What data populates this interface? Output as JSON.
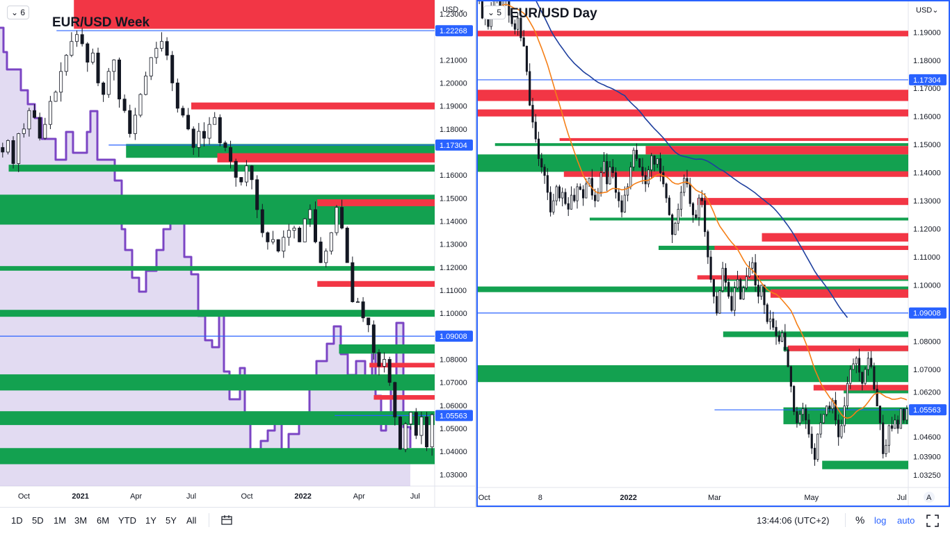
{
  "colors": {
    "bear_zone": "#f23645",
    "bull_zone": "#13a150",
    "level_line": "#2962ff",
    "candle": "#131722",
    "volume_line": "#7b45c4",
    "volume_fill": "#cbbde8",
    "ma_fast": "#f57f17",
    "ma_slow": "#1e3f9e",
    "price_tag": "#2962ff",
    "pane_border": "#2962ff"
  },
  "left_chart": {
    "pane_tag": "6",
    "currency": "USD",
    "ticks": [
      "1.23000",
      "1.22268",
      "1.21000",
      "1.20000",
      "1.19000",
      "1.18000",
      "1.17304",
      "1.16000",
      "1.15000",
      "1.14000",
      "1.13000",
      "1.12000",
      "1.11000",
      "1.10000",
      "1.09008",
      "1.08000",
      "1.07000",
      "1.06000",
      "1.05563",
      "1.05000",
      "1.04000",
      "1.03000"
    ],
    "time_labels": [
      "Oct",
      "2021",
      "Apr",
      "Jul",
      "Oct",
      "2022",
      "Apr",
      "Jul"
    ]
  },
  "right_chart": {
    "pane_tag": "5",
    "currency": "USD",
    "ticks": [
      "1.19000",
      "1.18000",
      "1.17304",
      "1.17000",
      "1.16000",
      "1.15000",
      "1.14000",
      "1.13000",
      "1.12000",
      "1.11000",
      "1.09008",
      "1.10000",
      "1.08000",
      "1.07000",
      "1.06200",
      "1.05563",
      "1.04600",
      "1.03900",
      "1.03250"
    ],
    "time_labels": [
      "Oct",
      "8",
      "2022",
      "Mar",
      "May",
      "Jul"
    ],
    "auto_badge": "A"
  },
  "chart_data": [
    {
      "type": "candlestick",
      "title": "EUR/USD Week",
      "ylim": [
        1.025,
        1.236
      ],
      "price_levels": [
        1.22268,
        1.17304,
        1.09008,
        1.05563
      ],
      "current_price": 1.05563,
      "resistance_zones": [
        [
          1.2235,
          1.236
        ],
        [
          1.1885,
          1.1915
        ],
        [
          1.1655,
          1.1695
        ],
        [
          1.1465,
          1.1495
        ],
        [
          1.1115,
          1.114
        ],
        [
          1.0765,
          1.0785
        ],
        [
          1.0625,
          1.0645
        ]
      ],
      "support_zones": [
        [
          1.1675,
          1.1735
        ],
        [
          1.1615,
          1.1645
        ],
        [
          1.1385,
          1.1515
        ],
        [
          1.1185,
          1.1205
        ],
        [
          1.0985,
          1.1015
        ],
        [
          1.0825,
          1.0865
        ],
        [
          1.0665,
          1.0735
        ],
        [
          1.0515,
          1.0575
        ],
        [
          1.0345,
          1.0415
        ]
      ],
      "closes": [
        1.17,
        1.175,
        1.165,
        1.178,
        1.18,
        1.188,
        1.185,
        1.176,
        1.182,
        1.192,
        1.196,
        1.205,
        1.212,
        1.218,
        1.221,
        1.217,
        1.209,
        1.213,
        1.2,
        1.195,
        1.205,
        1.21,
        1.193,
        1.188,
        1.178,
        1.186,
        1.195,
        1.203,
        1.211,
        1.215,
        1.218,
        1.212,
        1.2,
        1.189,
        1.186,
        1.18,
        1.172,
        1.179,
        1.176,
        1.182,
        1.185,
        1.174,
        1.172,
        1.166,
        1.159,
        1.157,
        1.164,
        1.158,
        1.145,
        1.135,
        1.131,
        1.132,
        1.127,
        1.133,
        1.136,
        1.137,
        1.131,
        1.141,
        1.145,
        1.131,
        1.122,
        1.127,
        1.135,
        1.146,
        1.137,
        1.122,
        1.105,
        1.105,
        1.098,
        1.095,
        1.083,
        1.077,
        1.08,
        1.07,
        1.055,
        1.041,
        1.052,
        1.057,
        1.047,
        1.055,
        1.042,
        1.056
      ]
    },
    {
      "type": "candlestick",
      "title": "EUR/USD Day",
      "ylim": [
        1.028,
        1.196
      ],
      "price_levels": [
        1.17304,
        1.09008,
        1.05563
      ],
      "current_price": 1.05563,
      "resistance_zones": [
        [
          1.1885,
          1.1905
        ],
        [
          1.1655,
          1.1695
        ],
        [
          1.16,
          1.1625
        ],
        [
          1.1513,
          1.1523
        ],
        [
          1.1465,
          1.1495
        ],
        [
          1.1385,
          1.1405
        ],
        [
          1.1285,
          1.131
        ],
        [
          1.1155,
          1.1185
        ],
        [
          1.1125,
          1.114
        ],
        [
          1.102,
          1.1035
        ],
        [
          1.0955,
          1.0985
        ],
        [
          1.0765,
          1.0785
        ],
        [
          1.0625,
          1.0645
        ]
      ],
      "support_zones": [
        [
          1.1403,
          1.1465
        ],
        [
          1.1495,
          1.1505
        ],
        [
          1.123,
          1.124
        ],
        [
          1.143,
          1.1445
        ],
        [
          1.1125,
          1.114
        ],
        [
          1.0975,
          1.0995
        ],
        [
          1.1015,
          1.103
        ],
        [
          1.0815,
          1.0835
        ],
        [
          1.0765,
          1.078
        ],
        [
          1.0655,
          1.0715
        ],
        [
          1.0505,
          1.0565
        ],
        [
          1.0615,
          1.063
        ],
        [
          1.0345,
          1.0375
        ]
      ],
      "closes": [
        1.203,
        1.195,
        1.198,
        1.192,
        1.198,
        1.202,
        1.206,
        1.198,
        1.205,
        1.202,
        1.196,
        1.193,
        1.191,
        1.195,
        1.188,
        1.185,
        1.176,
        1.164,
        1.158,
        1.152,
        1.145,
        1.142,
        1.139,
        1.133,
        1.126,
        1.13,
        1.135,
        1.131,
        1.133,
        1.129,
        1.127,
        1.132,
        1.13,
        1.135,
        1.134,
        1.131,
        1.136,
        1.138,
        1.132,
        1.13,
        1.133,
        1.14,
        1.144,
        1.136,
        1.142,
        1.14,
        1.133,
        1.13,
        1.126,
        1.132,
        1.135,
        1.142,
        1.148,
        1.145,
        1.142,
        1.139,
        1.136,
        1.141,
        1.146,
        1.143,
        1.145,
        1.14,
        1.136,
        1.131,
        1.125,
        1.118,
        1.122,
        1.127,
        1.133,
        1.138,
        1.136,
        1.129,
        1.125,
        1.124,
        1.131,
        1.13,
        1.119,
        1.11,
        1.102,
        1.096,
        1.09,
        1.098,
        1.106,
        1.101,
        1.096,
        1.091,
        1.099,
        1.102,
        1.095,
        1.099,
        1.103,
        1.106,
        1.108,
        1.1,
        1.096,
        1.1,
        1.093,
        1.087,
        1.088,
        1.085,
        1.082,
        1.08,
        1.083,
        1.077,
        1.071,
        1.064,
        1.055,
        1.051,
        1.054,
        1.056,
        1.052,
        1.047,
        1.042,
        1.038,
        1.047,
        1.051,
        1.054,
        1.057,
        1.056,
        1.059,
        1.052,
        1.046,
        1.05,
        1.057,
        1.065,
        1.07,
        1.072,
        1.074,
        1.069,
        1.065,
        1.07,
        1.074,
        1.071,
        1.063,
        1.057,
        1.051,
        1.04,
        1.043,
        1.05,
        1.049,
        1.052,
        1.049,
        1.056,
        1.052,
        1.056
      ]
    }
  ],
  "bottom_toolbar": {
    "timeframes": [
      "1D",
      "5D",
      "1M",
      "3M",
      "6M",
      "YTD",
      "1Y",
      "5Y",
      "All"
    ],
    "time_display": "13:44:06 (UTC+2)",
    "percent_label": "%",
    "log_label": "log",
    "auto_label": "auto"
  }
}
